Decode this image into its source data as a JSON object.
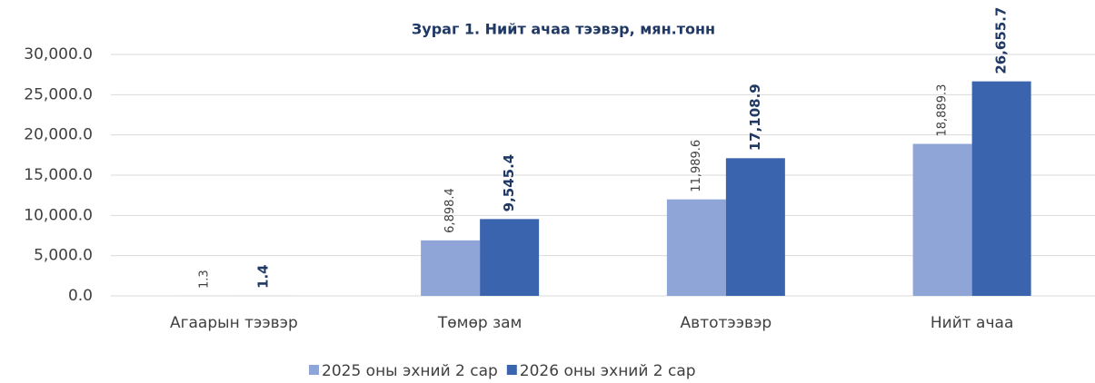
{
  "chart_data": {
    "type": "bar",
    "title": "Зураг 1. Нийт ачаа тээвэр, мян.тонн",
    "categories": [
      "Агаарын тээвэр",
      "Төмөр зам",
      "Автотээвэр",
      "Нийт ачаа"
    ],
    "series": [
      {
        "name": "2025 оны эхний 2 сар",
        "color": "#8fa5d7",
        "values": [
          1.3,
          6898.4,
          11989.6,
          18889.3
        ],
        "value_labels": [
          "1.3",
          "6,898.4",
          "11,989.6",
          "18,889.3"
        ]
      },
      {
        "name": "2026 оны эхний 2 сар",
        "color": "#3b64ae",
        "values": [
          1.4,
          9545.4,
          17108.9,
          26655.7
        ],
        "value_labels": [
          "1.4",
          "9,545.4",
          "17,108.9",
          "26,655.7"
        ]
      }
    ],
    "ylim": [
      0,
      30000
    ],
    "yticks": [
      {
        "value": 0,
        "label": "0.0"
      },
      {
        "value": 5000,
        "label": "5,000.0"
      },
      {
        "value": 10000,
        "label": "10,000.0"
      },
      {
        "value": 15000,
        "label": "15,000.0"
      },
      {
        "value": 20000,
        "label": "20,000.0"
      },
      {
        "value": 25000,
        "label": "25,000.0"
      },
      {
        "value": 30000,
        "label": "30,000.0"
      }
    ],
    "grid": true,
    "legend": "bottom"
  }
}
